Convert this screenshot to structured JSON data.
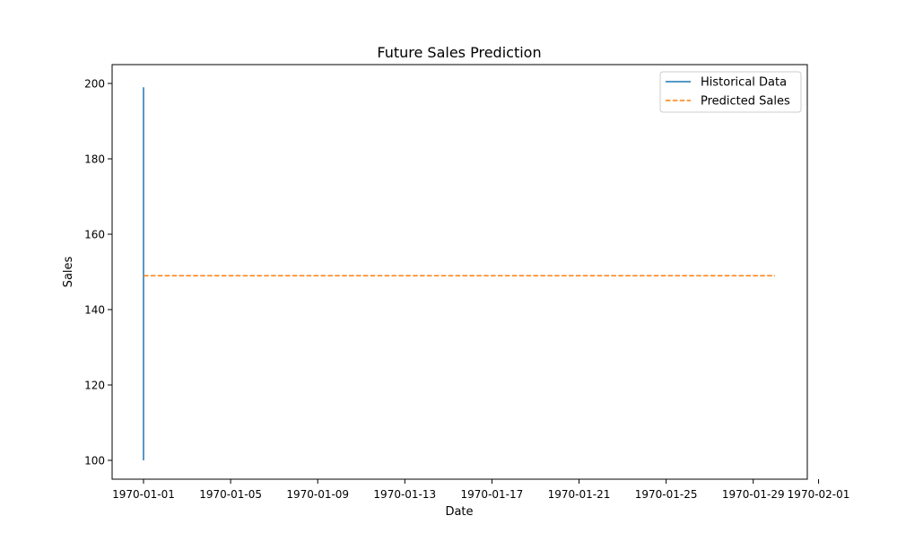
{
  "chart_data": {
    "type": "line",
    "title": "Future Sales Prediction",
    "xlabel": "Date",
    "ylabel": "Sales",
    "x_axis_type": "date",
    "xlim": [
      "1970-01-01",
      "1970-02-01"
    ],
    "ylim": [
      100,
      200
    ],
    "x_ticks": [
      "1970-01-01",
      "1970-01-05",
      "1970-01-09",
      "1970-01-13",
      "1970-01-17",
      "1970-01-21",
      "1970-01-25",
      "1970-01-29",
      "1970-02-01"
    ],
    "y_ticks": [
      100,
      120,
      140,
      160,
      180,
      200
    ],
    "grid": false,
    "legend_position": "top-right",
    "series": [
      {
        "name": "Historical Data",
        "style": "solid",
        "color": "#1f77b4",
        "points": [
          {
            "x": "1970-01-01",
            "y": 100
          },
          {
            "x": "1970-01-01",
            "y": 199
          }
        ]
      },
      {
        "name": "Predicted Sales",
        "style": "dashed",
        "color": "#ff7f0e",
        "points": [
          {
            "x": "1970-01-01",
            "y": 149
          },
          {
            "x": "1970-01-30",
            "y": 149
          }
        ]
      }
    ]
  }
}
